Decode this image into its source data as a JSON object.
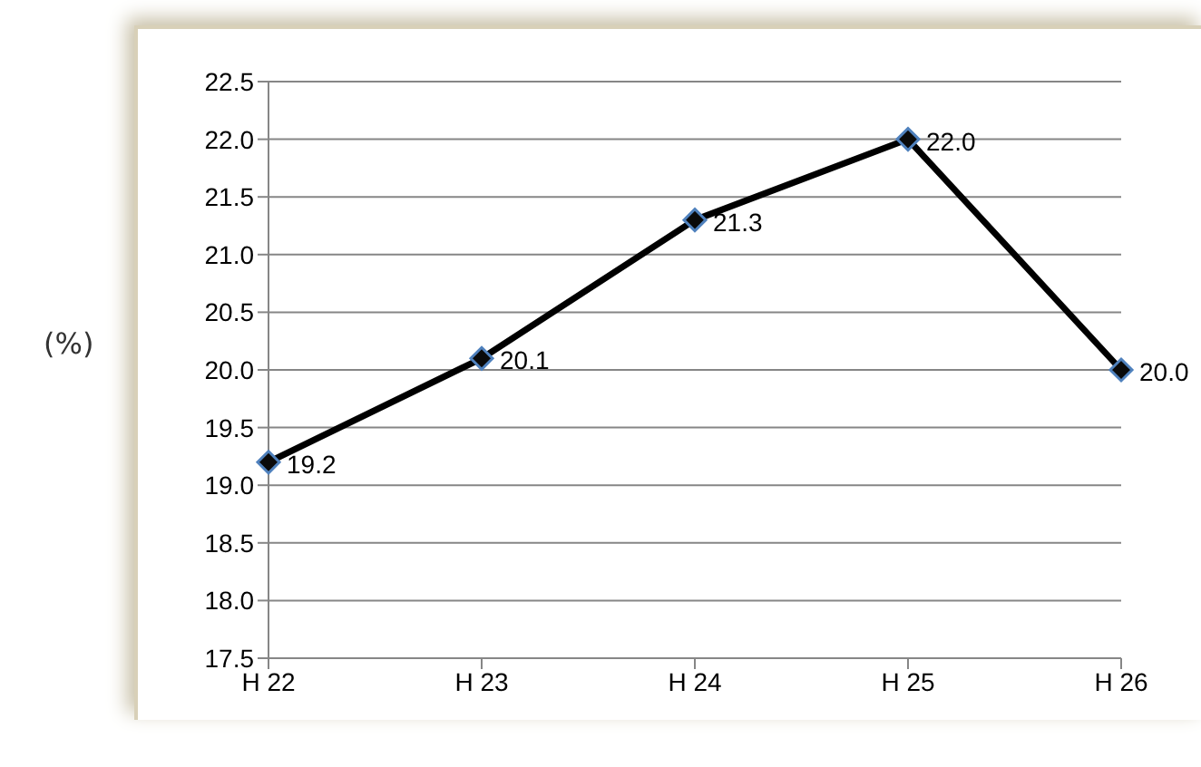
{
  "chart_data": {
    "type": "line",
    "ylabel": "(%)",
    "categories": [
      "H 22",
      "H 23",
      "H 24",
      "H 25",
      "H 26"
    ],
    "series": [
      {
        "color": "#000000",
        "values": [
          19.2,
          20.1,
          21.3,
          22.0,
          20.0
        ],
        "value_labels": [
          "19.2",
          "20.1",
          "21.3",
          "22.0",
          "20.0"
        ]
      }
    ],
    "ylim": [
      17.5,
      22.5
    ],
    "yticks": [
      {
        "value": 17.5,
        "label": "17.5"
      },
      {
        "value": 18,
        "label": "18.0"
      },
      {
        "value": 18.5,
        "label": "18.5"
      },
      {
        "value": 19,
        "label": "19.0"
      },
      {
        "value": 19.5,
        "label": "19.5"
      },
      {
        "value": 20,
        "label": "20.0"
      },
      {
        "value": 20.5,
        "label": "20.5"
      },
      {
        "value": 21,
        "label": "21.0"
      },
      {
        "value": 21.5,
        "label": "21.5"
      },
      {
        "value": 22,
        "label": "22.0"
      },
      {
        "value": 22.5,
        "label": "22.5"
      }
    ],
    "grid": "y",
    "marker": "diamond",
    "line_style": "solid",
    "legend": false
  }
}
